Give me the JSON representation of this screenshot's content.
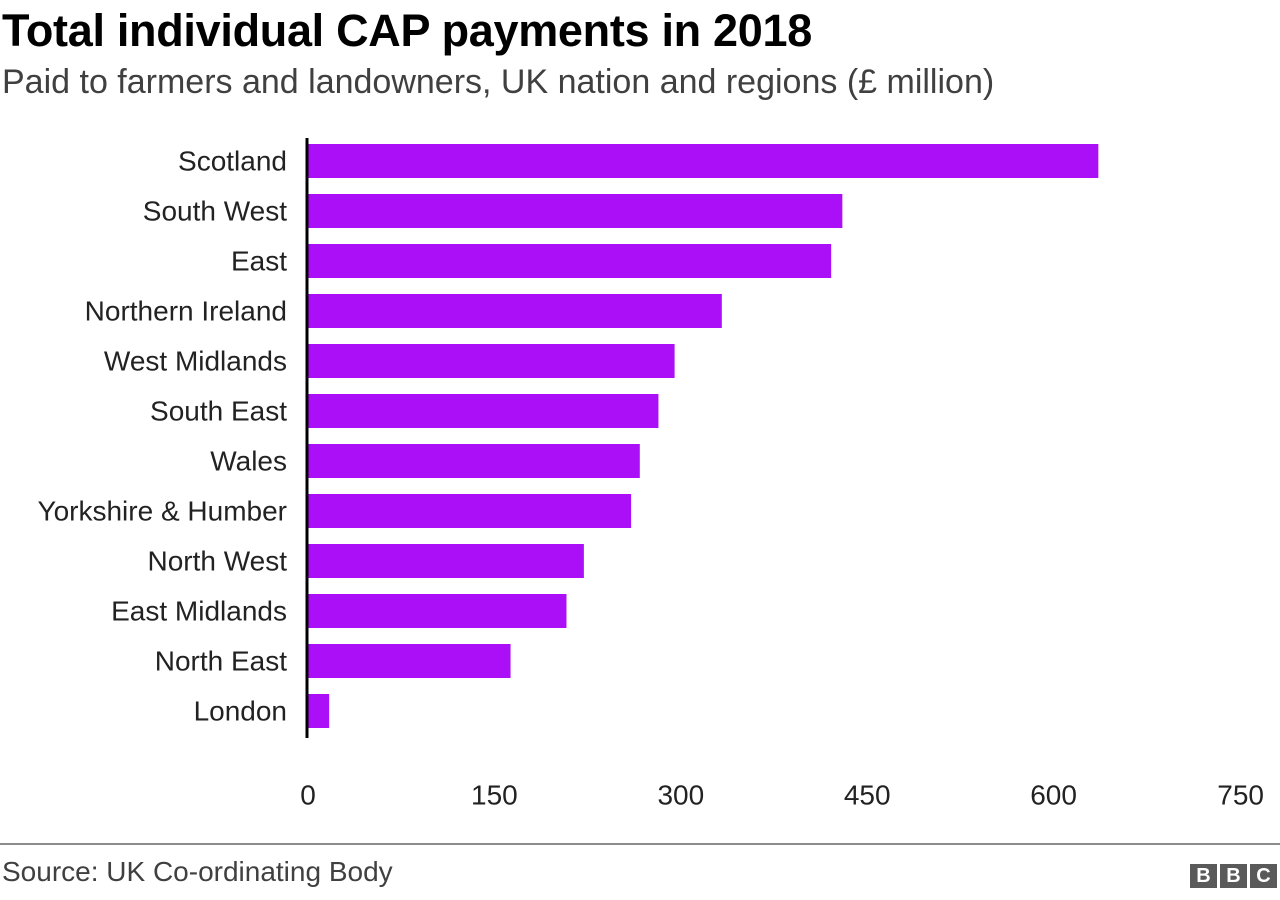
{
  "header": {
    "title": "Total individual CAP payments in 2018",
    "subtitle": "Paid to farmers and landowners, UK nation and regions (£ million)"
  },
  "footer": {
    "source": "Source: UK Co-ordinating Body",
    "logo_letters": [
      "B",
      "B",
      "C"
    ]
  },
  "colors": {
    "bar": "#aa0ff8",
    "axis": "#000000",
    "rule": "#8c8c8c"
  },
  "chart_data": {
    "type": "bar",
    "orientation": "horizontal",
    "categories": [
      "Scotland",
      "South West",
      "East",
      "Northern Ireland",
      "West Midlands",
      "South East",
      "Wales",
      "Yorkshire & Humber",
      "North West",
      "East Midlands",
      "North East",
      "London"
    ],
    "values": [
      636,
      430,
      421,
      333,
      295,
      282,
      267,
      260,
      222,
      208,
      163,
      17
    ],
    "xlim": [
      0,
      750
    ],
    "xticks": [
      0,
      150,
      300,
      450,
      600,
      750
    ],
    "grid": false,
    "legend": "none"
  }
}
